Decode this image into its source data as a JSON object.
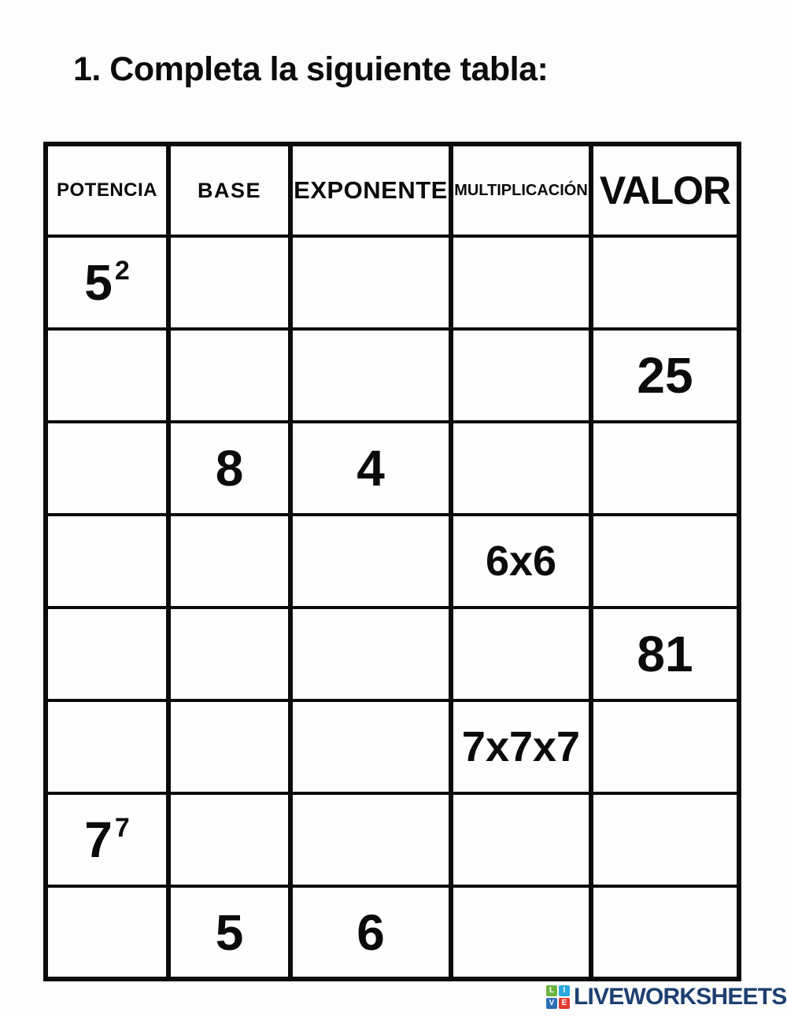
{
  "page": {
    "title": "1. Completa la siguiente tabla:"
  },
  "table": {
    "columns": [
      {
        "key": "potencia",
        "label": "POTENCIA"
      },
      {
        "key": "base",
        "label": "BASE"
      },
      {
        "key": "exponente",
        "label": "EXPONENTE"
      },
      {
        "key": "multiplicacion",
        "label": "MULTIPLICACIÓN"
      },
      {
        "key": "valor",
        "label": "VALOR"
      }
    ],
    "rows": [
      {
        "potencia": {
          "text": "5",
          "sup": "2"
        },
        "base": "",
        "exponente": "",
        "multiplicacion": "",
        "valor": ""
      },
      {
        "potencia": "",
        "base": "",
        "exponente": "",
        "multiplicacion": "",
        "valor": "25"
      },
      {
        "potencia": "",
        "base": "8",
        "exponente": "4",
        "multiplicacion": "",
        "valor": ""
      },
      {
        "potencia": "",
        "base": "",
        "exponente": "",
        "multiplicacion": "6x6",
        "valor": ""
      },
      {
        "potencia": "",
        "base": "",
        "exponente": "",
        "multiplicacion": "",
        "valor": "81"
      },
      {
        "potencia": "",
        "base": "",
        "exponente": "",
        "multiplicacion": "7x7x7",
        "valor": ""
      },
      {
        "potencia": {
          "text": "7",
          "sup": "7"
        },
        "base": "",
        "exponente": "",
        "multiplicacion": "",
        "valor": ""
      },
      {
        "potencia": "",
        "base": "5",
        "exponente": "6",
        "multiplicacion": "",
        "valor": ""
      }
    ]
  },
  "branding": {
    "logo_text": "LIVEWORKSHEETS",
    "icon_letters": [
      "L",
      "I",
      "V",
      "E"
    ],
    "icon_colors": [
      "#6cb33f",
      "#29a8e0",
      "#2a6db5",
      "#e23c33"
    ],
    "text_color": "#1d4070"
  }
}
